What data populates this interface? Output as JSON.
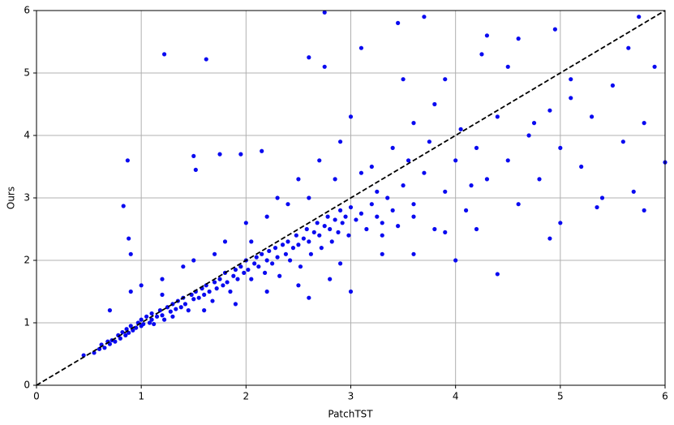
{
  "chart_data": {
    "type": "scatter",
    "xlabel": "PatchTST",
    "ylabel": "Ours",
    "color": "#0a0af0",
    "grid": true,
    "xlim": [
      0,
      6
    ],
    "ylim": [
      0,
      6
    ],
    "xticks": [
      0,
      1,
      2,
      3,
      4,
      5,
      6
    ],
    "yticks": [
      0,
      1,
      2,
      3,
      4,
      5,
      6
    ],
    "x": [
      0.45,
      0.55,
      0.6,
      0.62,
      0.65,
      0.68,
      0.7,
      0.72,
      0.75,
      0.78,
      0.8,
      0.82,
      0.85,
      0.86,
      0.88,
      0.9,
      0.92,
      0.95,
      0.97,
      1.0,
      1.0,
      1.02,
      1.05,
      1.08,
      1.1,
      1.1,
      1.12,
      1.15,
      1.18,
      1.2,
      1.22,
      1.25,
      1.28,
      1.3,
      1.3,
      1.33,
      1.35,
      1.38,
      1.4,
      1.42,
      1.45,
      1.48,
      1.5,
      1.52,
      1.55,
      1.58,
      1.6,
      1.62,
      1.65,
      1.68,
      1.7,
      1.72,
      1.75,
      1.78,
      1.8,
      1.82,
      1.85,
      1.88,
      1.9,
      1.92,
      1.95,
      1.98,
      2.0,
      2.02,
      2.05,
      2.08,
      2.1,
      2.12,
      2.15,
      2.18,
      2.2,
      2.22,
      2.25,
      2.28,
      2.3,
      2.32,
      2.35,
      2.38,
      2.4,
      2.42,
      2.45,
      2.48,
      2.5,
      2.52,
      2.55,
      2.58,
      2.6,
      2.62,
      2.65,
      2.68,
      2.7,
      2.72,
      2.75,
      2.78,
      2.8,
      2.82,
      2.85,
      2.88,
      2.9,
      2.92,
      2.95,
      2.98,
      3.0,
      3.05,
      3.1,
      3.15,
      3.2,
      3.25,
      3.3,
      3.35,
      3.4,
      3.45,
      1.6,
      1.9,
      2.2,
      2.5,
      2.8,
      3.0,
      2.6,
      1.8,
      1.5,
      2.0,
      1.2,
      1.0,
      0.7,
      0.9,
      2.3,
      2.5,
      2.7,
      2.9,
      3.0,
      3.2,
      3.4,
      3.5,
      3.6,
      3.8,
      3.9,
      3.5,
      3.6,
      3.7,
      3.8,
      3.9,
      4.0,
      4.1,
      4.2,
      4.3,
      4.4,
      4.5,
      4.6,
      4.7,
      4.8,
      4.9,
      5.0,
      5.1,
      5.2,
      5.3,
      5.4,
      5.5,
      5.6,
      5.7,
      5.8,
      5.9,
      6.0,
      5.75,
      5.65,
      5.8,
      4.4,
      4.0,
      3.6,
      4.3,
      4.6,
      4.95,
      4.25,
      3.7,
      3.45,
      2.75,
      2.6,
      2.75,
      1.22,
      1.62,
      0.87,
      1.5,
      1.75,
      1.95,
      1.52,
      0.83,
      2.15,
      3.1,
      4.5,
      5.1,
      4.9,
      5.0,
      4.75,
      5.35,
      4.2,
      3.9,
      2.9,
      3.3,
      3.1,
      2.4,
      2.2,
      2.05,
      0.9,
      0.88,
      1.2,
      1.4,
      1.7,
      2.6,
      2.85,
      3.25,
      3.55,
      3.75,
      4.05,
      4.15,
      3.3,
      3.6
    ],
    "values": [
      0.48,
      0.52,
      0.58,
      0.65,
      0.6,
      0.7,
      0.66,
      0.72,
      0.7,
      0.8,
      0.75,
      0.85,
      0.8,
      0.9,
      0.84,
      0.95,
      0.88,
      0.92,
      1.0,
      0.95,
      1.05,
      0.98,
      1.1,
      1.0,
      1.05,
      1.15,
      0.98,
      1.1,
      1.2,
      1.12,
      1.05,
      1.25,
      1.18,
      1.3,
      1.1,
      1.22,
      1.35,
      1.25,
      1.4,
      1.3,
      1.2,
      1.45,
      1.38,
      1.5,
      1.4,
      1.55,
      1.45,
      1.6,
      1.5,
      1.35,
      1.65,
      1.55,
      1.7,
      1.6,
      1.8,
      1.65,
      1.5,
      1.75,
      1.85,
      1.7,
      1.9,
      1.8,
      2.0,
      1.85,
      1.7,
      1.95,
      2.05,
      1.9,
      2.1,
      1.8,
      2.0,
      2.15,
      1.95,
      2.2,
      2.05,
      1.75,
      2.25,
      2.1,
      2.3,
      2.0,
      2.2,
      2.4,
      2.25,
      1.9,
      2.35,
      2.5,
      2.3,
      2.1,
      2.45,
      2.6,
      2.4,
      2.2,
      2.55,
      2.7,
      2.5,
      2.3,
      2.65,
      2.45,
      2.8,
      2.6,
      2.7,
      2.4,
      2.85,
      2.65,
      2.75,
      2.5,
      2.9,
      2.7,
      2.6,
      3.0,
      2.8,
      2.55,
      1.2,
      1.3,
      1.5,
      1.6,
      1.7,
      1.5,
      1.4,
      2.3,
      2.0,
      2.6,
      1.7,
      1.6,
      1.2,
      1.5,
      3.0,
      3.3,
      3.6,
      3.9,
      4.3,
      3.5,
      3.8,
      4.9,
      4.2,
      4.5,
      4.9,
      3.2,
      2.9,
      3.4,
      2.5,
      3.1,
      3.6,
      2.8,
      3.8,
      3.3,
      4.3,
      3.6,
      2.9,
      4.0,
      3.3,
      4.4,
      3.8,
      4.6,
      3.5,
      4.3,
      3.0,
      4.8,
      3.9,
      3.1,
      4.2,
      5.1,
      3.57,
      5.9,
      5.4,
      2.8,
      1.78,
      2.0,
      2.1,
      5.6,
      5.55,
      5.7,
      5.3,
      5.9,
      5.8,
      5.97,
      5.25,
      5.1,
      5.3,
      5.22,
      3.6,
      3.67,
      3.7,
      3.7,
      3.45,
      2.87,
      3.75,
      5.4,
      5.1,
      4.9,
      2.35,
      2.6,
      4.2,
      2.85,
      2.5,
      2.45,
      1.95,
      2.1,
      3.4,
      2.9,
      2.7,
      2.3,
      2.1,
      2.35,
      1.45,
      1.9,
      2.1,
      3.0,
      3.3,
      3.1,
      3.6,
      3.9,
      4.1,
      3.2,
      2.4,
      2.7
    ]
  }
}
